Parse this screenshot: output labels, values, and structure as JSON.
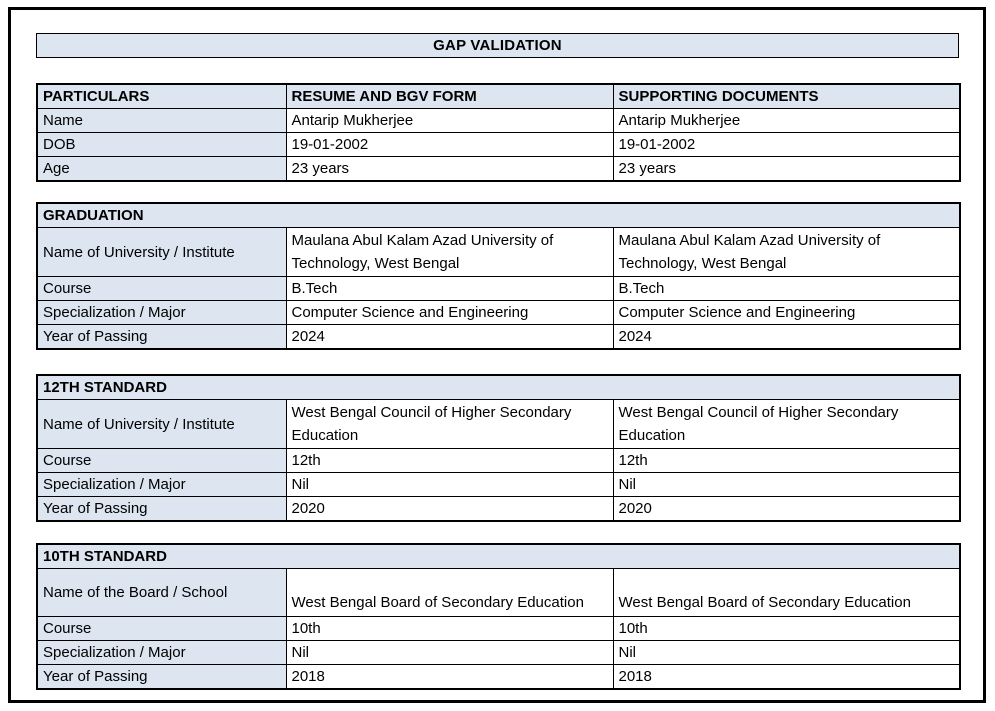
{
  "title": "GAP VALIDATION",
  "colors": {
    "header_fill": "#dce5f0",
    "border": "#000000",
    "page_background": "#ffffff",
    "text": "#000000"
  },
  "particulars": {
    "headers": [
      "PARTICULARS",
      "RESUME AND BGV FORM",
      "SUPPORTING DOCUMENTS"
    ],
    "rows": [
      {
        "label": "Name",
        "resume": "Antarip Mukherjee",
        "supporting": "Antarip Mukherjee"
      },
      {
        "label": "DOB",
        "resume": "19-01-2002",
        "supporting": "19-01-2002"
      },
      {
        "label": "Age",
        "resume": "23 years",
        "supporting": "23 years"
      }
    ]
  },
  "sections": [
    {
      "title": "GRADUATION",
      "rows": [
        {
          "label": "Name of University / Institute",
          "resume": "Maulana Abul Kalam Azad University of Technology, West Bengal",
          "supporting": "Maulana Abul Kalam Azad University of Technology, West Bengal"
        },
        {
          "label": "Course",
          "resume": "B.Tech",
          "supporting": "B.Tech"
        },
        {
          "label": "Specialization / Major",
          "resume": "Computer Science and Engineering",
          "supporting": "Computer Science and Engineering"
        },
        {
          "label": "Year of Passing",
          "resume": "2024",
          "supporting": "2024"
        }
      ]
    },
    {
      "title": "12TH STANDARD",
      "rows": [
        {
          "label": "Name of University / Institute",
          "resume": "West Bengal Council of Higher Secondary Education",
          "supporting": "West Bengal Council of Higher Secondary Education"
        },
        {
          "label": "Course",
          "resume": "12th",
          "supporting": "12th"
        },
        {
          "label": "Specialization / Major",
          "resume": "Nil",
          "supporting": "Nil"
        },
        {
          "label": "Year of Passing",
          "resume": "2020",
          "supporting": "2020"
        }
      ]
    },
    {
      "title": "10TH STANDARD",
      "rows": [
        {
          "label": "Name of the Board / School",
          "resume": "West Bengal Board of Secondary Education",
          "supporting": "West Bengal Board of Secondary Education"
        },
        {
          "label": "Course",
          "resume": "10th",
          "supporting": "10th"
        },
        {
          "label": "Specialization / Major",
          "resume": "Nil",
          "supporting": "Nil"
        },
        {
          "label": "Year of Passing",
          "resume": "2018",
          "supporting": "2018"
        }
      ]
    }
  ]
}
